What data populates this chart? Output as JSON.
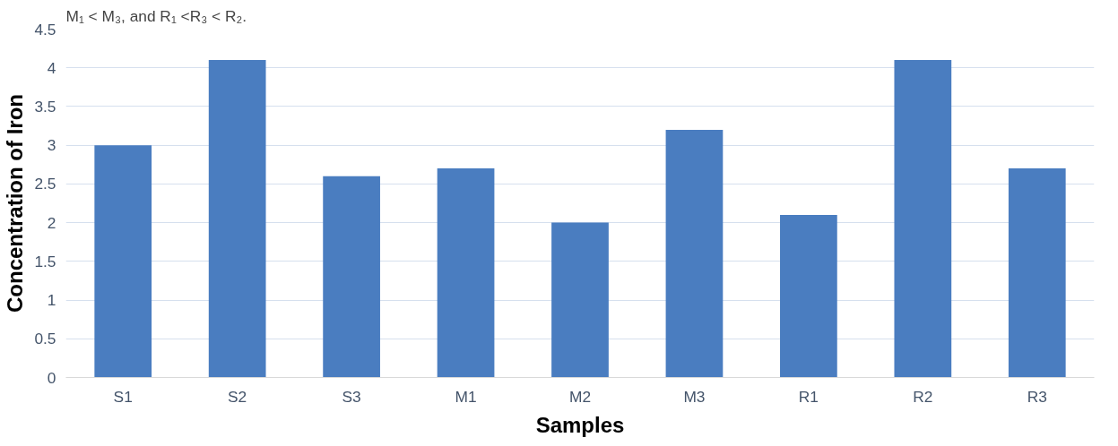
{
  "chart_data": {
    "type": "bar",
    "xlabel": "Samples",
    "ylabel": "Concentration of Iron",
    "annotations": [
      "M₁ < M₃, and R₁ <R₃ < R₂."
    ],
    "categories": [
      "S1",
      "S2",
      "S3",
      "M1",
      "M2",
      "M3",
      "R1",
      "R2",
      "R3"
    ],
    "values": [
      3.0,
      4.1,
      2.6,
      2.7,
      2.0,
      3.2,
      2.1,
      4.1,
      2.7
    ],
    "color": "#4a7dc0",
    "ylim": [
      0,
      4.5
    ],
    "yticks": [
      0,
      0.5,
      1,
      1.5,
      2,
      2.5,
      3,
      3.5,
      4,
      4.5
    ],
    "grid": "y"
  }
}
